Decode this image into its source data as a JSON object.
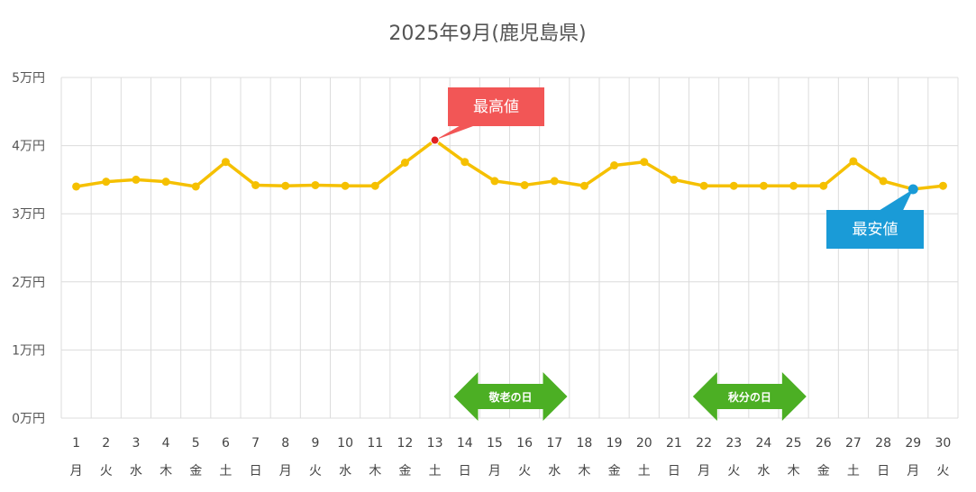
{
  "chart_data": {
    "type": "line",
    "title": "2025年9月(鹿児島県)",
    "xlabel": "",
    "ylabel": "",
    "ylim": [
      0,
      50000
    ],
    "yticks": [
      {
        "value": 0,
        "label": "0万円"
      },
      {
        "value": 10000,
        "label": "1万円"
      },
      {
        "value": 20000,
        "label": "2万円"
      },
      {
        "value": 30000,
        "label": "3万円"
      },
      {
        "value": 40000,
        "label": "4万円"
      },
      {
        "value": 50000,
        "label": "5万円"
      }
    ],
    "days": [
      "1",
      "2",
      "3",
      "4",
      "5",
      "6",
      "7",
      "8",
      "9",
      "10",
      "11",
      "12",
      "13",
      "14",
      "15",
      "16",
      "17",
      "18",
      "19",
      "20",
      "21",
      "22",
      "23",
      "24",
      "25",
      "26",
      "27",
      "28",
      "29",
      "30"
    ],
    "weekdays": [
      "月",
      "火",
      "水",
      "木",
      "金",
      "土",
      "日",
      "月",
      "火",
      "水",
      "木",
      "金",
      "土",
      "日",
      "月",
      "火",
      "水",
      "木",
      "金",
      "土",
      "日",
      "月",
      "火",
      "水",
      "木",
      "金",
      "土",
      "日",
      "月",
      "火"
    ],
    "series": [
      {
        "color": "#f5c000",
        "values": [
          34000,
          34700,
          35000,
          34700,
          34000,
          37600,
          34200,
          34100,
          34200,
          34100,
          34100,
          37500,
          40800,
          37600,
          34800,
          34200,
          34800,
          34100,
          37100,
          37600,
          35000,
          34100,
          34100,
          34100,
          34100,
          34100,
          37700,
          34800,
          33600,
          34100
        ]
      }
    ],
    "grid": true,
    "annotations": {
      "max": {
        "label": "最高値",
        "day_index": 12,
        "color": "#f25656",
        "point_color": "#e02020"
      },
      "min": {
        "label": "最安値",
        "day_index": 28,
        "color": "#1a9bd7",
        "point_color": "#1a9bd7"
      }
    },
    "holidays": [
      {
        "label": "敬老の日",
        "day_index": 14,
        "color": "#4caf24"
      },
      {
        "label": "秋分の日",
        "day_index": 22,
        "color": "#4caf24"
      }
    ]
  }
}
